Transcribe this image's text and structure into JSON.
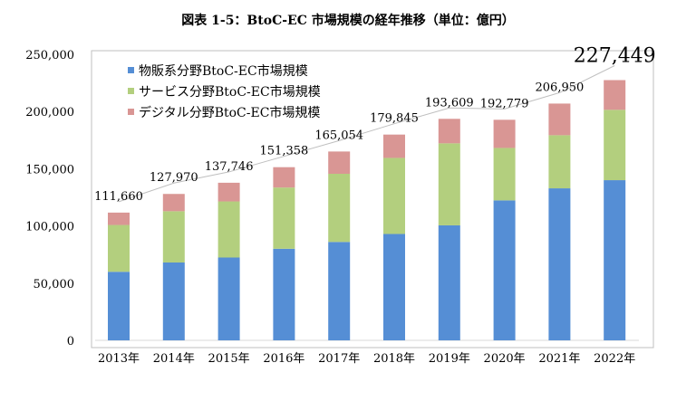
{
  "chart_data": {
    "type": "bar",
    "stacked": true,
    "title": "図表 1-5：BtoC-EC 市場規模の経年推移（単位：億円）",
    "categories": [
      "2013年",
      "2014年",
      "2015年",
      "2016年",
      "2017年",
      "2018年",
      "2019年",
      "2020年",
      "2021年",
      "2022年"
    ],
    "series": [
      {
        "name": "物販系分野BtoC-EC市場規模",
        "color": "#558ED5",
        "values": [
          59931,
          68043,
          72398,
          80043,
          86008,
          92992,
          100515,
          122333,
          132865,
          139997
        ]
      },
      {
        "name": "サービス分野BtoC-EC市場規模",
        "color": "#B3CF7E",
        "values": [
          40899,
          44816,
          49014,
          53532,
          59568,
          66471,
          71672,
          45832,
          46424,
          61477
        ]
      },
      {
        "name": "デジタル分野BtoC-EC市場規模",
        "color": "#D99694",
        "values": [
          10830,
          15111,
          16334,
          17783,
          19478,
          20382,
          21422,
          24614,
          27661,
          25974
        ]
      }
    ],
    "totals": [
      "111,660",
      "127,970",
      "137,746",
      "151,358",
      "165,054",
      "179,845",
      "193,609",
      "192,779",
      "206,950",
      "227,449"
    ],
    "yticks": [
      "0",
      "50,000",
      "100,000",
      "150,000",
      "200,000",
      "250,000"
    ],
    "ylim": [
      0,
      250000
    ],
    "legend": "top-left"
  }
}
